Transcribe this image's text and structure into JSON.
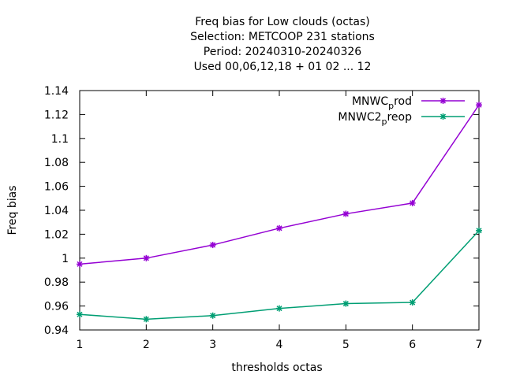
{
  "chart_data": {
    "type": "line",
    "title_lines": [
      "Freq bias  for Low clouds (octas)",
      "Selection: METCOOP    231 stations",
      "Period: 20240310-20240326",
      "Used  00,06,12,18 + 01 02 ... 12"
    ],
    "xlabel": "thresholds octas",
    "ylabel": "Freq bias",
    "x": [
      1,
      2,
      3,
      4,
      5,
      6,
      7
    ],
    "xlim": [
      1,
      7
    ],
    "ylim": [
      0.94,
      1.14
    ],
    "yticks": [
      0.94,
      0.96,
      0.98,
      1.0,
      1.02,
      1.04,
      1.06,
      1.08,
      1.1,
      1.12,
      1.14
    ],
    "ytick_labels": [
      "0.94",
      "0.96",
      "0.98",
      "1",
      "1.02",
      "1.04",
      "1.06",
      "1.08",
      "1.1",
      "1.12",
      "1.14"
    ],
    "xtick_labels": [
      "1",
      "2",
      "3",
      "4",
      "5",
      "6",
      "7"
    ],
    "grid": false,
    "legend_position": "top-right",
    "series": [
      {
        "name": "MNWC_prod",
        "legend_main": "MNWC",
        "legend_sub": "p",
        "legend_rest": "rod",
        "color": "#9400d3",
        "values": [
          0.995,
          1.0,
          1.011,
          1.025,
          1.037,
          1.046,
          1.128
        ]
      },
      {
        "name": "MNWC2_preop",
        "legend_main": "MNWC2",
        "legend_sub": "p",
        "legend_rest": "reop",
        "color": "#009e73",
        "values": [
          0.953,
          0.949,
          0.952,
          0.958,
          0.962,
          0.963,
          1.023
        ]
      }
    ]
  }
}
